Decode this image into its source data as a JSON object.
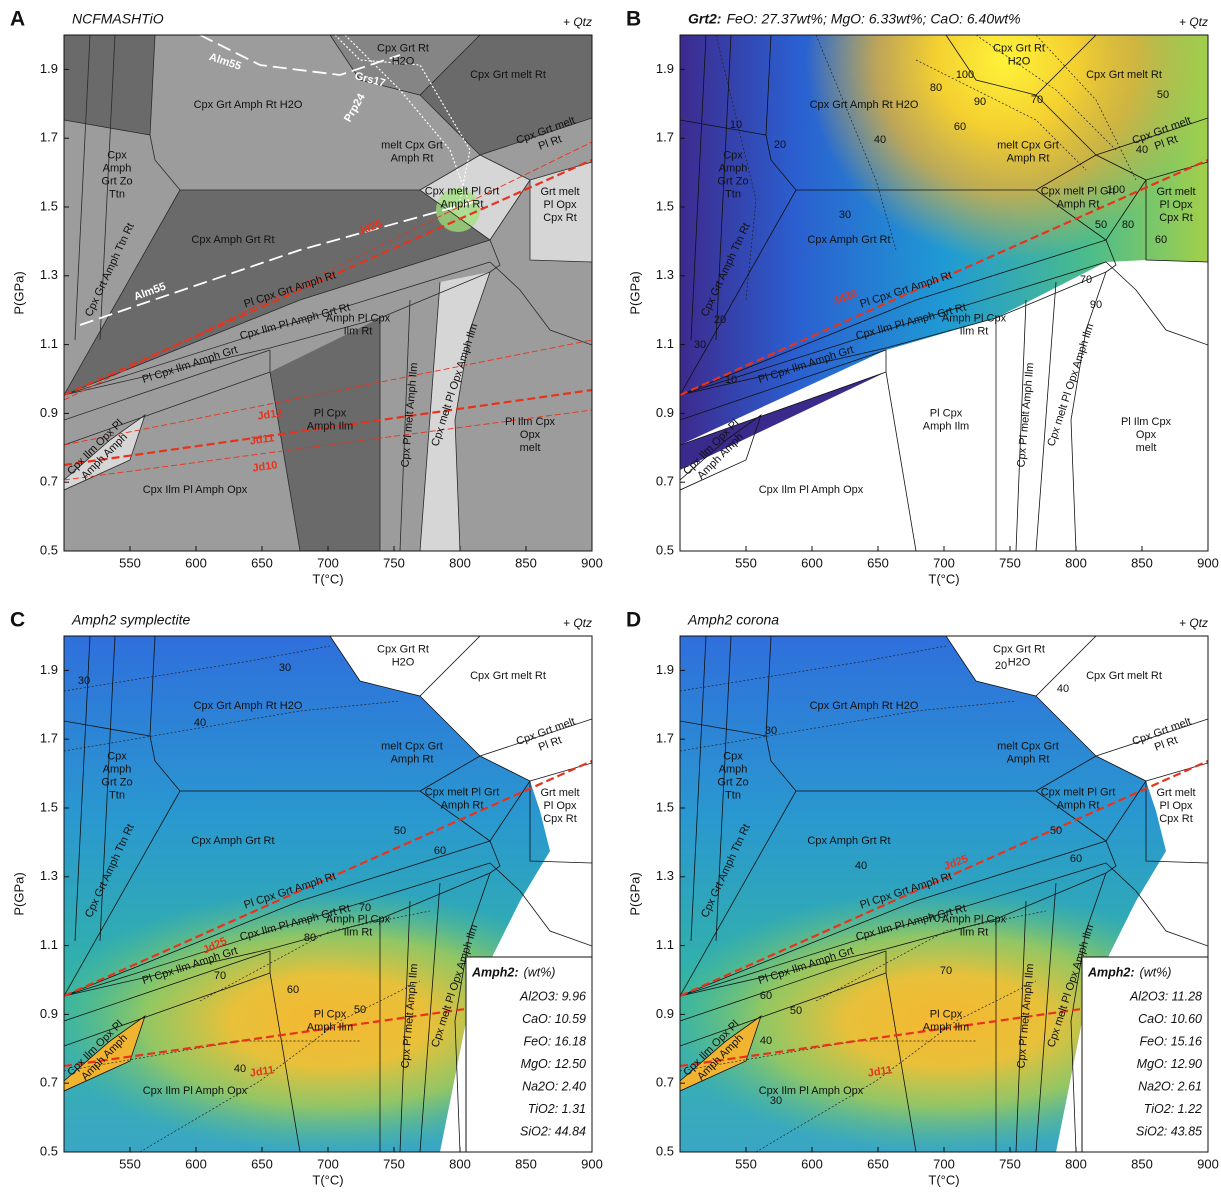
{
  "chart_data": [
    {
      "type": "pseudosection",
      "panel": "A",
      "title": "NCFMASHTiO",
      "annotation": "+ Qtz",
      "xlabel": "T(°C)",
      "ylabel": "P(GPa)",
      "xlim": [
        500,
        900
      ],
      "ylim": [
        0.5,
        2.0
      ],
      "xticks": [
        550,
        600,
        650,
        700,
        750,
        800,
        850,
        900
      ],
      "yticks": [
        0.5,
        0.7,
        0.9,
        1.1,
        1.3,
        1.5,
        1.7,
        1.9
      ],
      "fields": [
        [
          "Cpx Grt Rt",
          "H2O"
        ],
        [
          "Cpx Grt melt Rt"
        ],
        [
          "Cpx Grt Amph Rt H2O"
        ],
        [
          "Cpx",
          "Amph",
          "Grt Zo",
          "Ttn"
        ],
        [
          "melt Cpx Grt",
          "Amph Rt"
        ],
        [
          "Cpx Grt melt",
          "Pl Rt"
        ],
        [
          "Cpx melt Pl Grt",
          "Amph Rt"
        ],
        [
          "Grt melt",
          "Pl Opx",
          "Cpx Rt"
        ],
        [
          "Cpx Amph Grt Rt"
        ],
        [
          "Cpx Grt Amph Ttn Rt"
        ],
        [
          "Pl Cpx Grt Amph Rt"
        ],
        [
          "Cpx Ilm Pl Amph Grt Rt"
        ],
        [
          "Amph Pl Cpx",
          "Ilm Rt"
        ],
        [
          "Pl Cpx Ilm Amph Grt"
        ],
        [
          "Pl Cpx",
          "Amph Ilm"
        ],
        [
          "Cpx Pl melt Amph Ilm"
        ],
        [
          "Cpx melt Pl Opx Amph Ilm"
        ],
        [
          "Pl Ilm Cpx",
          "Opx",
          "melt"
        ],
        [
          "Cpx Ilm Opx Pl",
          "Amph Amph"
        ],
        [
          "Cpx Ilm Pl Amph Opx"
        ]
      ],
      "isopleth_labels": [
        "Alm55",
        "Grs17",
        "Prp24",
        "Alm55",
        "Jd25",
        "Jd12",
        "Jd11",
        "Jd10"
      ]
    },
    {
      "type": "contour",
      "panel": "B",
      "title_label": "Grt2:",
      "title": "FeO: 27.37wt%; MgO: 6.33wt%; CaO: 6.40wt%",
      "annotation": "+ Qtz",
      "xlabel": "T(°C)",
      "ylabel": "P(GPa)",
      "xlim": [
        500,
        900
      ],
      "ylim": [
        0.5,
        2.0
      ],
      "xticks": [
        550,
        600,
        650,
        700,
        750,
        800,
        850,
        900
      ],
      "yticks": [
        0.5,
        0.7,
        0.9,
        1.1,
        1.3,
        1.5,
        1.7,
        1.9
      ],
      "fields": [
        [
          "Cpx Grt Rt",
          "H2O"
        ],
        [
          "Cpx Grt melt Rt"
        ],
        [
          "Cpx Grt Amph Rt H2O"
        ],
        [
          "Cpx",
          "Amph",
          "Grt Zo",
          "Ttn"
        ],
        [
          "melt Cpx Grt",
          "Amph Rt"
        ],
        [
          "Cpx Grt melt",
          "Pl Rt"
        ],
        [
          "Cpx melt Pl Grt",
          "Amph Rt"
        ],
        [
          "Grt melt",
          "Pl Opx",
          "Cpx Rt"
        ],
        [
          "Cpx Amph Grt Rt"
        ],
        [
          "Cpx Grt Amph Ttn Rt"
        ],
        [
          "Pl Cpx Grt Amph Rt"
        ],
        [
          "Cpx Ilm Pl Amph Grt Rt"
        ],
        [
          "Amph Pl Cpx",
          "Ilm Rt"
        ],
        [
          "Pl Cpx Ilm Amph Grt"
        ],
        [
          "Pl Cpx",
          "Amph Ilm"
        ],
        [
          "Cpx Pl melt Amph Ilm"
        ],
        [
          "Cpx melt Pl Opx Amph Ilm"
        ],
        [
          "Pl Ilm Cpx",
          "Opx",
          "melt"
        ],
        [
          "Cpx Ilm Opx Pl",
          "Amph Amph"
        ],
        [
          "Cpx Ilm Pl Amph Opx"
        ]
      ],
      "isopleth_labels": [
        "Jd25"
      ],
      "contour_labels": [
        10,
        20,
        30,
        40,
        60,
        80,
        90,
        100,
        70,
        50,
        40,
        50,
        70,
        90,
        100,
        80,
        60,
        30,
        20,
        10
      ]
    },
    {
      "type": "contour",
      "panel": "C",
      "title": "Amph2 symplectite",
      "annotation": "+ Qtz",
      "xlabel": "T(°C)",
      "ylabel": "P(GPa)",
      "xlim": [
        500,
        900
      ],
      "ylim": [
        0.5,
        2.0
      ],
      "xticks": [
        550,
        600,
        650,
        700,
        750,
        800,
        850,
        900
      ],
      "yticks": [
        0.5,
        0.7,
        0.9,
        1.1,
        1.3,
        1.5,
        1.7,
        1.9
      ],
      "fields": [
        [
          "Cpx Grt Rt",
          "H2O"
        ],
        [
          "Cpx Grt melt Rt"
        ],
        [
          "Cpx Grt Amph Rt H2O"
        ],
        [
          "Cpx",
          "Amph",
          "Grt Zo",
          "Ttn"
        ],
        [
          "melt Cpx Grt",
          "Amph Rt"
        ],
        [
          "Cpx Grt melt",
          "Pl Rt"
        ],
        [
          "Cpx melt Pl Grt",
          "Amph Rt"
        ],
        [
          "Grt melt",
          "Pl Opx",
          "Cpx Rt"
        ],
        [
          "Cpx Amph Grt Rt"
        ],
        [
          "Cpx Grt Amph Ttn Rt"
        ],
        [
          "Pl Cpx Grt Amph Rt"
        ],
        [
          "Cpx Ilm Pl Amph Grt Rt"
        ],
        [
          "Amph Pl Cpx",
          "Ilm Rt"
        ],
        [
          "Pl Cpx Ilm Amph Grt"
        ],
        [
          "Pl Cpx",
          "Amph Ilm"
        ],
        [
          "Cpx Pl melt Amph Ilm"
        ],
        [
          "Cpx melt Pl Opx Amph Ilm"
        ],
        [
          "Pl Ilm Cpx",
          "Opx",
          "melt"
        ],
        [
          "Cpx Ilm Opx Pl",
          "Amph Amph"
        ],
        [
          "Cpx Ilm Pl Amph Opx"
        ]
      ],
      "isopleth_labels": [
        "Jd25",
        "Jd11"
      ],
      "contour_labels": [
        30,
        30,
        40,
        50,
        60,
        70,
        80,
        70,
        60,
        50,
        40
      ],
      "legend": {
        "title": "Amph2:",
        "unit": "(wt%)",
        "entries": [
          "Al2O3: 9.96",
          "CaO: 10.59",
          "FeO: 16.18",
          "MgO: 12.50",
          "Na2O: 2.40",
          "TiO2: 1.31",
          "SiO2: 44.84"
        ]
      }
    },
    {
      "type": "contour",
      "panel": "D",
      "title": "Amph2 corona",
      "annotation": "+ Qtz",
      "xlabel": "T(°C)",
      "ylabel": "P(GPa)",
      "xlim": [
        500,
        900
      ],
      "ylim": [
        0.5,
        2.0
      ],
      "xticks": [
        550,
        600,
        650,
        700,
        750,
        800,
        850,
        900
      ],
      "yticks": [
        0.5,
        0.7,
        0.9,
        1.1,
        1.3,
        1.5,
        1.7,
        1.9
      ],
      "fields": [
        [
          "Cpx Grt Rt",
          "H2O"
        ],
        [
          "Cpx Grt melt Rt"
        ],
        [
          "Cpx Grt Amph Rt H2O"
        ],
        [
          "Cpx",
          "Amph",
          "Grt Zo",
          "Ttn"
        ],
        [
          "melt Cpx Grt",
          "Amph Rt"
        ],
        [
          "Cpx Grt melt",
          "Pl Rt"
        ],
        [
          "Cpx melt Pl Grt",
          "Amph Rt"
        ],
        [
          "Grt melt",
          "Pl Opx",
          "Cpx Rt"
        ],
        [
          "Cpx Amph Grt Rt"
        ],
        [
          "Cpx Grt Amph Ttn Rt"
        ],
        [
          "Pl Cpx Grt Amph Rt"
        ],
        [
          "Cpx Ilm Pl Amph Grt Rt"
        ],
        [
          "Amph Pl Cpx",
          "Ilm Rt"
        ],
        [
          "Pl Cpx Ilm Amph Grt"
        ],
        [
          "Pl Cpx",
          "Amph Ilm"
        ],
        [
          "Cpx Pl melt Amph Ilm"
        ],
        [
          "Cpx melt Pl Opx Amph Ilm"
        ],
        [
          "Pl Ilm Cpx",
          "Opx",
          "melt"
        ],
        [
          "Cpx Ilm Opx Pl",
          "Amph Amph"
        ],
        [
          "Cpx Ilm Pl Amph Opx"
        ]
      ],
      "isopleth_labels": [
        "Jd25",
        "Jd11"
      ],
      "contour_labels": [
        20,
        40,
        30,
        40,
        50,
        60,
        70,
        70,
        60,
        50,
        40,
        30
      ],
      "legend": {
        "title": "Amph2:",
        "unit": "(wt%)",
        "entries": [
          "Al2O3: 11.28",
          "CaO: 10.60",
          "FeO: 15.16",
          "MgO: 12.90",
          "Na2O: 2.61",
          "TiO2: 1.22",
          "SiO2: 43.85"
        ]
      }
    }
  ]
}
